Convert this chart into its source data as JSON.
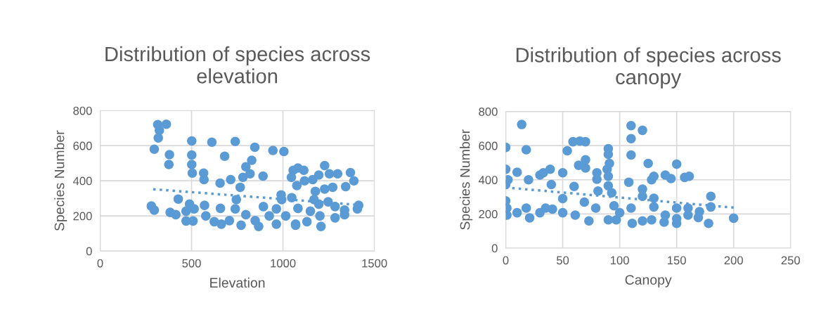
{
  "chart_data": [
    {
      "type": "scatter",
      "title": "Distribution of species across\nelevation",
      "xlabel": "Elevation",
      "ylabel": "Species Number",
      "xlim": [
        0,
        1500
      ],
      "xticks": [
        0,
        500,
        1000,
        1500
      ],
      "ylim": [
        0,
        800
      ],
      "yticks": [
        0,
        200,
        400,
        600,
        800
      ],
      "grid": true,
      "marker": "circle",
      "series": [
        {
          "color": "#5b9bd5",
          "x": [
            315,
            362,
            324,
            318,
            296,
            379,
            376,
            501,
            611,
            739,
            846,
            945,
            1005,
            501,
            501,
            504,
            681,
            566,
            568,
            656,
            714,
            781,
            797,
            829,
            820,
            891,
            766,
            427,
            280,
            296,
            383,
            414,
            489,
            470,
            470,
            508,
            514,
            571,
            578,
            624,
            663,
            658,
            707,
            745,
            739,
            771,
            797,
            848,
            867,
            893,
            925,
            964,
            964,
            990,
            993,
            1015,
            1048,
            1069,
            1082,
            1056,
            1082,
            1114,
            1046,
            1076,
            1118,
            1163,
            1196,
            1228,
            1254,
            1299,
            1369,
            1388,
            1343,
            1272,
            1228,
            1177,
            1170,
            1196,
            1247,
            1285,
            1337,
            1337,
            1285,
            1202,
            1208,
            1131,
            1069,
            1150,
            1414,
            1407
          ],
          "values": [
            720,
            722,
            687,
            644,
            580,
            549,
            493,
            627,
            620,
            624,
            591,
            573,
            567,
            547,
            493,
            444,
            540,
            444,
            407,
            387,
            407,
            420,
            480,
            517,
            440,
            427,
            363,
            296,
            256,
            233,
            220,
            207,
            267,
            227,
            171,
            171,
            240,
            260,
            200,
            167,
            153,
            243,
            173,
            293,
            240,
            147,
            207,
            173,
            140,
            253,
            200,
            153,
            240,
            320,
            293,
            200,
            304,
            147,
            243,
            460,
            473,
            460,
            420,
            373,
            400,
            407,
            433,
            487,
            440,
            440,
            447,
            400,
            367,
            363,
            353,
            340,
            293,
            267,
            280,
            253,
            233,
            207,
            189,
            200,
            140,
            167,
            153,
            227,
            260,
            240
          ]
        },
        {
          "type": "line",
          "color": "#5b9bd5",
          "line_style": "dotted",
          "marker": "none",
          "x": [
            290,
            1410
          ],
          "values": [
            352,
            263
          ]
        }
      ]
    },
    {
      "type": "scatter",
      "title": "Distribution of species across\ncanopy",
      "xlabel": "Canopy",
      "ylabel": "Species Number",
      "xlim": [
        0,
        250
      ],
      "xticks": [
        0,
        50,
        100,
        150,
        200,
        250
      ],
      "ylim": [
        0,
        800
      ],
      "yticks": [
        0,
        200,
        400,
        600,
        800
      ],
      "grid": true,
      "marker": "circle",
      "series": [
        {
          "color": "#5b9bd5",
          "x": [
            0,
            14,
            18,
            0,
            10,
            20,
            0,
            2,
            0,
            1,
            1,
            10,
            18,
            21,
            30,
            35,
            41,
            30,
            33,
            39,
            40,
            50,
            50,
            50,
            54,
            59,
            65,
            70,
            60,
            64,
            70,
            70,
            61,
            73,
            69,
            80,
            80,
            81,
            79,
            90,
            90,
            91,
            89,
            90,
            90,
            93,
            90,
            97,
            95,
            100,
            108,
            110,
            120,
            110,
            110,
            125,
            130,
            128,
            140,
            145,
            150,
            157,
            161,
            120,
            120,
            130,
            130,
            110,
            111,
            120,
            128,
            139,
            140,
            150,
            150,
            150,
            160,
            160,
            170,
            169,
            178,
            180,
            180,
            200
          ],
          "values": [
            590,
            724,
            576,
            462,
            444,
            400,
            372,
            400,
            276,
            234,
            193,
            207,
            234,
            177,
            207,
            234,
            228,
            428,
            441,
            462,
            372,
            441,
            290,
            207,
            570,
            623,
            627,
            623,
            361,
            485,
            517,
            469,
            193,
            159,
            269,
            441,
            403,
            334,
            234,
            582,
            549,
            496,
            462,
            421,
            365,
            324,
            165,
            165,
            248,
            207,
            386,
            717,
            690,
            641,
            545,
            496,
            421,
            400,
            428,
            407,
            492,
            414,
            421,
            345,
            303,
            292,
            241,
            234,
            145,
            159,
            165,
            152,
            193,
            234,
            145,
            172,
            234,
            193,
            214,
            179,
            145,
            303,
            241,
            175
          ]
        },
        {
          "type": "line",
          "color": "#5b9bd5",
          "line_style": "dotted",
          "marker": "none",
          "x": [
            0,
            200
          ],
          "values": [
            355,
            237
          ]
        }
      ]
    }
  ]
}
